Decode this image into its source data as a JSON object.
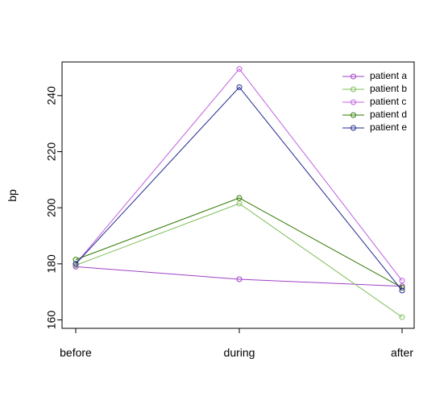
{
  "chart_data": {
    "type": "line",
    "title": "",
    "xlabel": "",
    "ylabel": "bp",
    "categories": [
      "before",
      "during",
      "after"
    ],
    "ylim": [
      157,
      252
    ],
    "yticks": [
      160,
      180,
      200,
      220,
      240
    ],
    "grid": false,
    "legend_position": "top-right",
    "series": [
      {
        "name": "patient a",
        "color": "#a040c8",
        "values": [
          179,
          174.5,
          172
        ]
      },
      {
        "name": "patient b",
        "color": "#7fbf5a",
        "values": [
          179.5,
          201.5,
          161
        ]
      },
      {
        "name": "patient c",
        "color": "#c060e0",
        "values": [
          180,
          249.5,
          174
        ]
      },
      {
        "name": "patient d",
        "color": "#2f7a00",
        "values": [
          181.5,
          203.5,
          171.5
        ]
      },
      {
        "name": "patient e",
        "color": "#202890",
        "values": [
          180,
          243,
          170.5
        ]
      }
    ]
  }
}
